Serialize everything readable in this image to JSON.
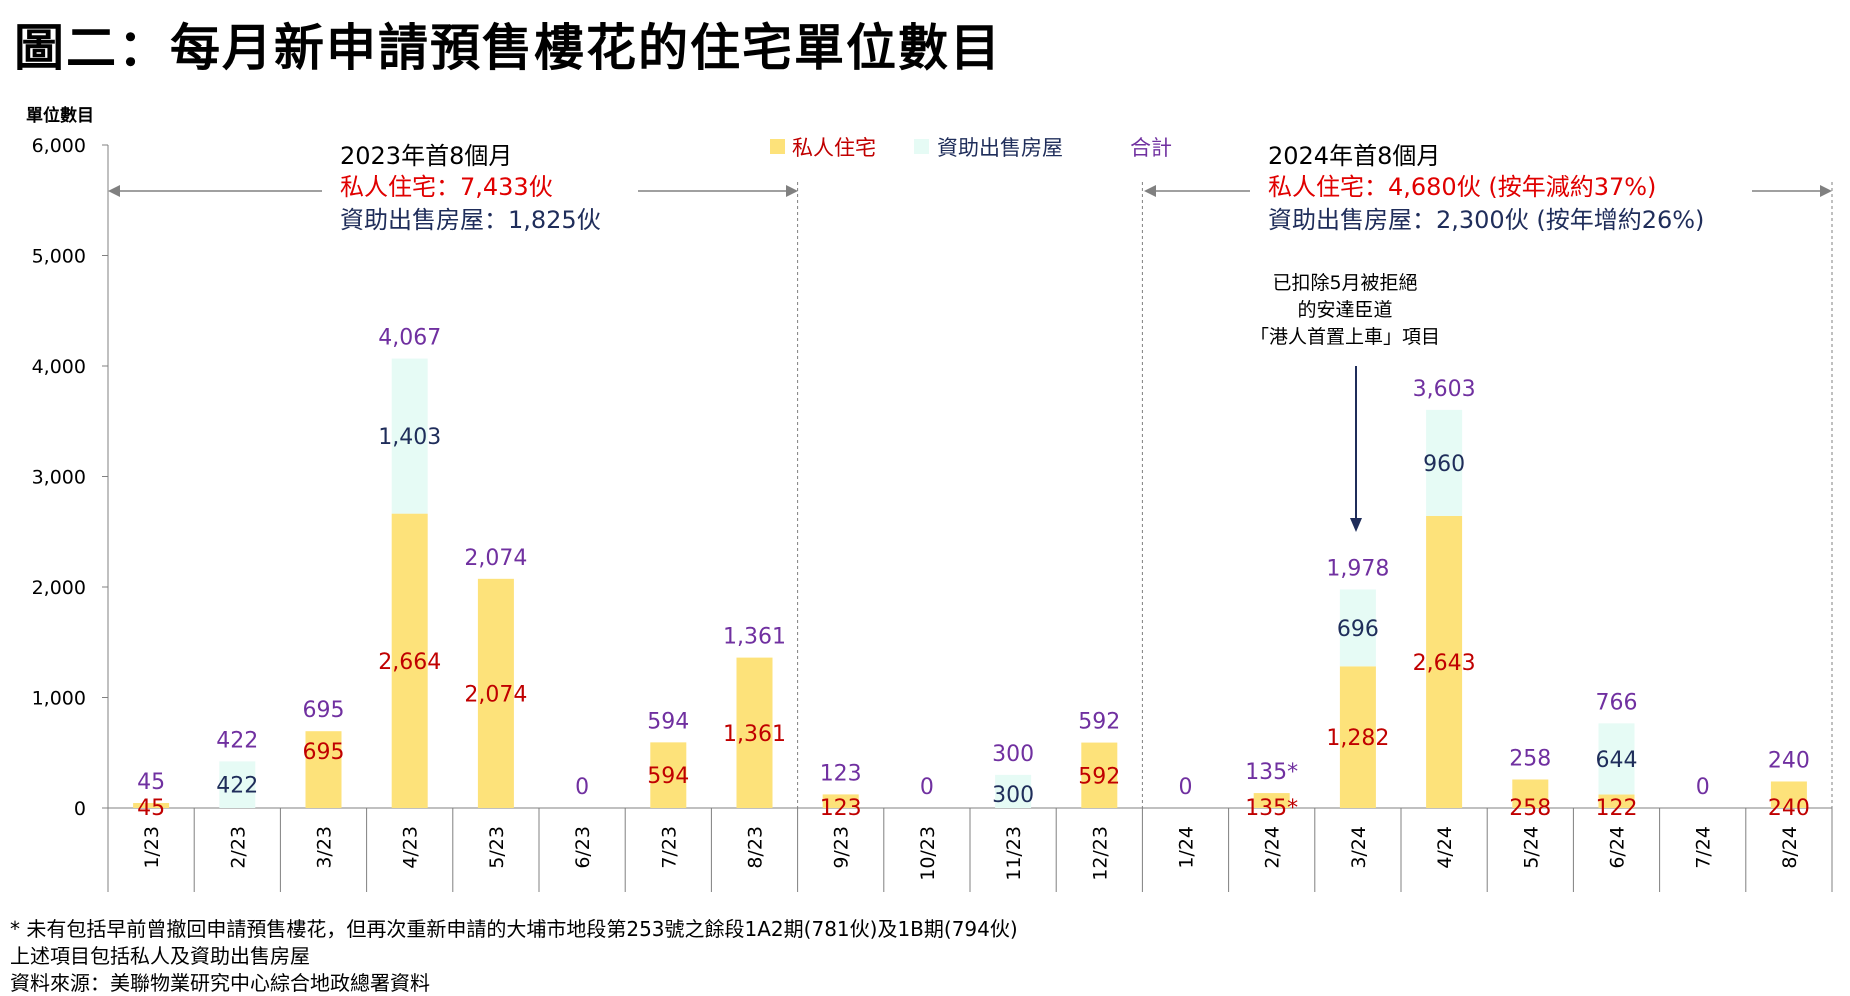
{
  "title": "圖二：每月新申請預售樓花的住宅單位數目",
  "colors": {
    "private": "#FDE27A",
    "subsidised": "#E6FBF5",
    "private_label": "#C00000",
    "subsidised_label": "#1F2D5A",
    "total_label": "#7030A0",
    "grid": "#808080"
  },
  "chart_data": {
    "type": "bar",
    "stacked": true,
    "ylabel": "單位數目",
    "ylim": [
      0,
      6000
    ],
    "yticks": [
      "0",
      "1,000",
      "2,000",
      "3,000",
      "4,000",
      "5,000",
      "6,000"
    ],
    "categories": [
      "1/23",
      "2/23",
      "3/23",
      "4/23",
      "5/23",
      "6/23",
      "7/23",
      "8/23",
      "9/23",
      "10/23",
      "11/23",
      "12/23",
      "1/24",
      "2/24",
      "3/24",
      "4/24",
      "5/24",
      "6/24",
      "7/24",
      "8/24"
    ],
    "series": [
      {
        "name": "私人住宅",
        "values": [
          45,
          0,
          695,
          2664,
          2074,
          0,
          594,
          1361,
          123,
          0,
          0,
          592,
          0,
          135,
          1282,
          2643,
          258,
          122,
          0,
          240
        ]
      },
      {
        "name": "資助出售房屋",
        "values": [
          0,
          422,
          0,
          1403,
          0,
          0,
          0,
          0,
          0,
          0,
          300,
          0,
          0,
          0,
          696,
          960,
          0,
          644,
          0,
          0
        ]
      }
    ],
    "totals": [
      45,
      422,
      695,
      4067,
      2074,
      0,
      594,
      1361,
      123,
      0,
      300,
      592,
      0,
      135,
      1978,
      3603,
      258,
      766,
      0,
      240
    ],
    "labels": {
      "private": [
        "45",
        "",
        "695",
        "2,664",
        "2,074",
        "",
        "594",
        "1,361",
        "123",
        "",
        "",
        "592",
        "",
        "135*",
        "1,282",
        "2,643",
        "258",
        "122",
        "",
        "240"
      ],
      "subsidised": [
        "",
        "422",
        "",
        "1,403",
        "",
        "",
        "",
        "",
        "",
        "",
        "300",
        "",
        "",
        "",
        "696",
        "960",
        "",
        "644",
        "",
        ""
      ],
      "total": [
        "45",
        "422",
        "695",
        "4,067",
        "2,074",
        "0",
        "594",
        "1,361",
        "123",
        "0",
        "300",
        "592",
        "0",
        "135*",
        "1,978",
        "3,603",
        "258",
        "766",
        "0",
        "240"
      ]
    },
    "legend": [
      "私人住宅",
      "資助出售房屋",
      "合計"
    ],
    "legend_placement": "top-center",
    "annotations": {
      "period1_title": "2023年首8個月",
      "period1_private": "私人住宅：7,433伙",
      "period1_subsidised": "資助出售房屋：1,825伙",
      "period2_title": "2024年首8個月",
      "period2_private": "私人住宅：4,680伙 (按年減約37%)",
      "period2_subsidised": "資助出售房屋：2,300伙 (按年增約26%)",
      "note_line1": "已扣除5月被拒絕",
      "note_line2": "的安達臣道",
      "note_line3": "「港人首置上車」項目"
    }
  },
  "footnotes": {
    "line1": "* 未有包括早前曾撤回申請預售樓花，但再次重新申請的大埔市地段第253號之餘段1A2期(781伙)及1B期(794伙)",
    "line2": "上述項目包括私人及資助出售房屋",
    "line3": "資料來源：美聯物業研究中心綜合地政總署資料"
  }
}
